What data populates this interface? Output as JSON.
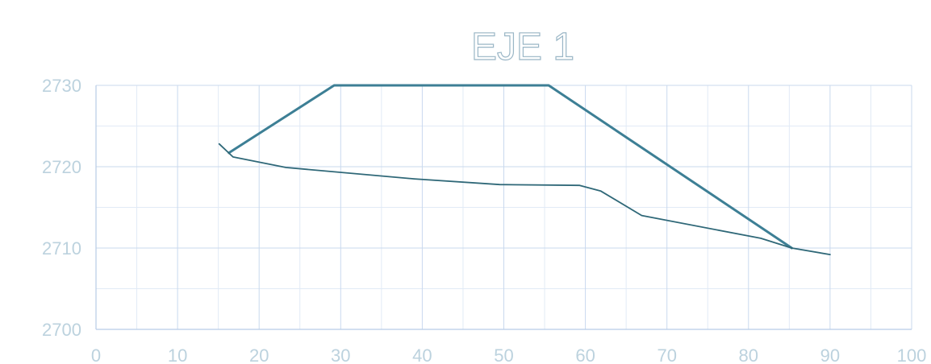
{
  "chart_data": {
    "type": "line",
    "title": "EJE 1",
    "xlabel": "",
    "ylabel": "",
    "xlim": [
      0,
      100
    ],
    "ylim": [
      2700,
      2730
    ],
    "x_ticks": [
      0,
      10,
      20,
      30,
      40,
      50,
      60,
      70,
      80,
      90,
      100
    ],
    "x_tick_labels": [
      "0",
      "10",
      "20",
      "30",
      "40",
      "50",
      "60",
      "70",
      "80",
      "90",
      "100"
    ],
    "y_ticks": [
      2700,
      2710,
      2720,
      2730
    ],
    "y_tick_labels": [
      "2700",
      "2710",
      "2720",
      "2730"
    ],
    "x_minor_step": 5,
    "y_minor_step": 5,
    "grid": true,
    "legend": "none",
    "series": [
      {
        "color": "#3d7f95",
        "width": 3,
        "points": [
          [
            16.3,
            2721.7
          ],
          [
            29.2,
            2730.0
          ],
          [
            55.5,
            2730.0
          ],
          [
            85.3,
            2710.0
          ]
        ]
      },
      {
        "color": "#2f6878",
        "width": 1.8,
        "points": [
          [
            15.1,
            2722.8
          ],
          [
            16.8,
            2721.2
          ],
          [
            23.3,
            2719.9
          ],
          [
            39.0,
            2718.5
          ],
          [
            49.5,
            2717.8
          ],
          [
            59.3,
            2717.7
          ],
          [
            61.9,
            2717.0
          ],
          [
            66.9,
            2714.0
          ],
          [
            81.5,
            2711.2
          ],
          [
            85.3,
            2710.0
          ],
          [
            90.0,
            2709.2
          ]
        ]
      }
    ]
  }
}
